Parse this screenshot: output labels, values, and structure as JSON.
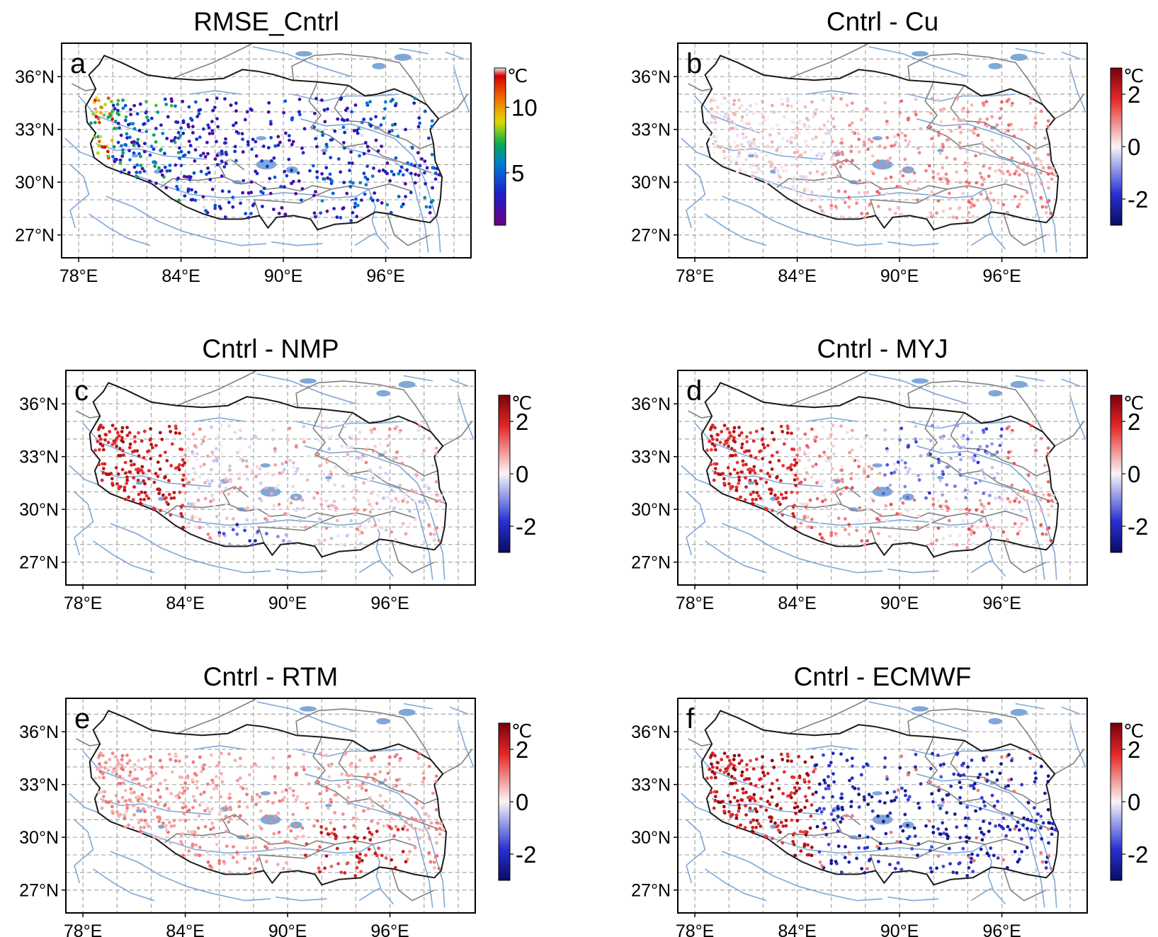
{
  "figure": {
    "lon_ticks": [
      "78°E",
      "84°E",
      "90°E",
      "96°E"
    ],
    "lat_ticks": [
      "36°N",
      "33°N",
      "30°N",
      "27°N"
    ],
    "colorbar_unit": "℃",
    "grid": "dashed gray, every 2°",
    "colors": {
      "river": "#7fa8d8",
      "lake": "#7fa8d8",
      "plateau_border": "#1a1a1a",
      "province_border": "#808080",
      "grid": "#a8a8a8"
    }
  },
  "panels": [
    {
      "letter": "a",
      "title": "RMSE_Cntrl",
      "colormap": "rainbow",
      "colorbar_ticks": [
        "10",
        "5"
      ],
      "colorbar_range": [
        1,
        13
      ]
    },
    {
      "letter": "b",
      "title": "Cntrl - Cu",
      "colormap": "diverging_blue_white_red",
      "colorbar_ticks": [
        "2",
        "0",
        "-2"
      ],
      "colorbar_range": [
        -3,
        3
      ]
    },
    {
      "letter": "c",
      "title": "Cntrl - NMP",
      "colormap": "diverging_blue_white_red",
      "colorbar_ticks": [
        "2",
        "0",
        "-2"
      ],
      "colorbar_range": [
        -3,
        3
      ]
    },
    {
      "letter": "d",
      "title": "Cntrl - MYJ",
      "colormap": "diverging_blue_white_red",
      "colorbar_ticks": [
        "2",
        "0",
        "-2"
      ],
      "colorbar_range": [
        -3,
        3
      ]
    },
    {
      "letter": "e",
      "title": "Cntrl - RTM",
      "colormap": "diverging_blue_white_red",
      "colorbar_ticks": [
        "2",
        "0",
        "-2"
      ],
      "colorbar_range": [
        -3,
        3
      ]
    },
    {
      "letter": "f",
      "title": "Cntrl - ECMWF",
      "colormap": "diverging_blue_white_red",
      "colorbar_ticks": [
        "2",
        "0",
        "-2"
      ],
      "colorbar_range": [
        -3,
        3
      ]
    }
  ]
}
